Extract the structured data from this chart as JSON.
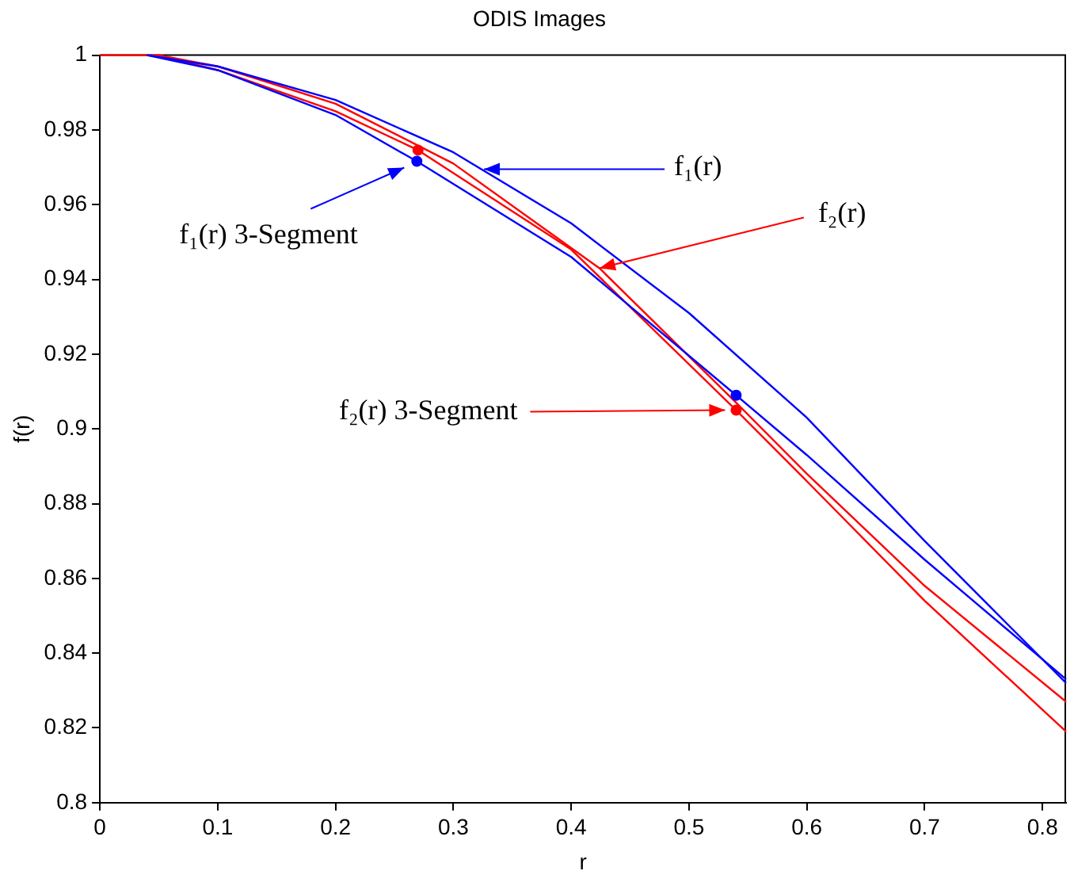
{
  "chart_data": {
    "type": "line",
    "title": "ODIS Images",
    "xlabel": "r",
    "ylabel": "f(r)",
    "xlim": [
      0,
      0.82
    ],
    "xticks": [
      0,
      0.1,
      0.2,
      0.3,
      0.4,
      0.5,
      0.6,
      0.7,
      0.8
    ],
    "ylim": [
      0.8,
      1
    ],
    "yticks": [
      0.8,
      0.82,
      0.84,
      0.86,
      0.88,
      0.9,
      0.92,
      0.94,
      0.96,
      0.98,
      1
    ],
    "grid": false,
    "legend": false,
    "marker": "none",
    "line_style": "solid",
    "series": [
      {
        "color": "#0000ff",
        "x": [
          0.04,
          0.1,
          0.2,
          0.3,
          0.4,
          0.5,
          0.6,
          0.7,
          0.82
        ],
        "values": [
          1,
          0.997,
          0.988,
          0.974,
          0.955,
          0.931,
          0.903,
          0.87,
          0.832
        ]
      },
      {
        "color": "#0000ff",
        "x": [
          0.04,
          0.1,
          0.2,
          0.269,
          0.4,
          0.54,
          0.6,
          0.7,
          0.82
        ],
        "values": [
          1,
          0.996,
          0.984,
          0.9716,
          0.946,
          0.909,
          0.893,
          0.865,
          0.833
        ]
      },
      {
        "color": "#ff0000",
        "x": [
          0,
          0.05,
          0.1,
          0.2,
          0.3,
          0.424,
          0.54,
          0.6,
          0.7,
          0.82
        ],
        "values": [
          1,
          1,
          0.997,
          0.987,
          0.971,
          0.943,
          0.907,
          0.888,
          0.858,
          0.827
        ]
      },
      {
        "color": "#ff0000",
        "x": [
          0.05,
          0.1,
          0.2,
          0.27,
          0.4,
          0.54,
          0.6,
          0.7,
          0.82
        ],
        "values": [
          1,
          0.996,
          0.985,
          0.9746,
          0.948,
          0.905,
          0.886,
          0.854,
          0.819
        ]
      },
      {
        "type": "scatter",
        "marker": "circle",
        "color": "#0000ff",
        "x": [
          0.269,
          0.54
        ],
        "values": [
          0.9716,
          0.909
        ]
      },
      {
        "type": "scatter",
        "marker": "circle",
        "color": "#ff0000",
        "x": [
          0.27,
          0.54
        ],
        "values": [
          0.9746,
          0.905
        ]
      }
    ],
    "annotations": [
      {
        "text": "f₁(r)",
        "x": 0.326,
        "y": 0.9695
      },
      {
        "text": "f₁(r) 3-Segment",
        "x": 0.269,
        "y": 0.9716
      },
      {
        "text": "f₂(r)",
        "x": 0.424,
        "y": 0.943
      },
      {
        "text": "f₂(r) 3-Segment",
        "x": 0.54,
        "y": 0.905
      }
    ]
  }
}
